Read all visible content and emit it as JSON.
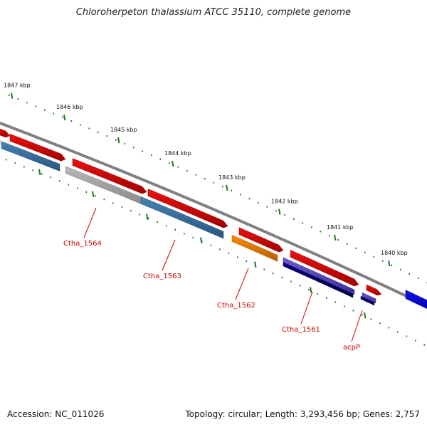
{
  "title": "Chloroherpeton thalassium ATCC 35110, complete genome",
  "accession": "Accession: NC_011026",
  "summary": "Topology: circular; Length: 3,293,456 bp; Genes: 2,757",
  "colors": {
    "backbone": "#808080",
    "tick": "#1a7a1a",
    "cds": "#ee1111",
    "label": "#cc0000",
    "steelblue": "#4682b4",
    "gray": "#b8b8b8",
    "orange": "#ff8c00",
    "slateblue": "#6a5acd",
    "navy": "#000080",
    "blue": "#1010ee",
    "olive": "#9aa030"
  },
  "kbp_labels": [
    "1847 kbp",
    "1846 kbp",
    "1845 kbp",
    "1844 kbp",
    "1843 kbp",
    "1842 kbp",
    "1841 kbp",
    "1840 kbp"
  ],
  "gene_labels": [
    "Ctha_1564",
    "Ctha_1563",
    "Ctha_1562",
    "Ctha_1561",
    "acpP"
  ]
}
